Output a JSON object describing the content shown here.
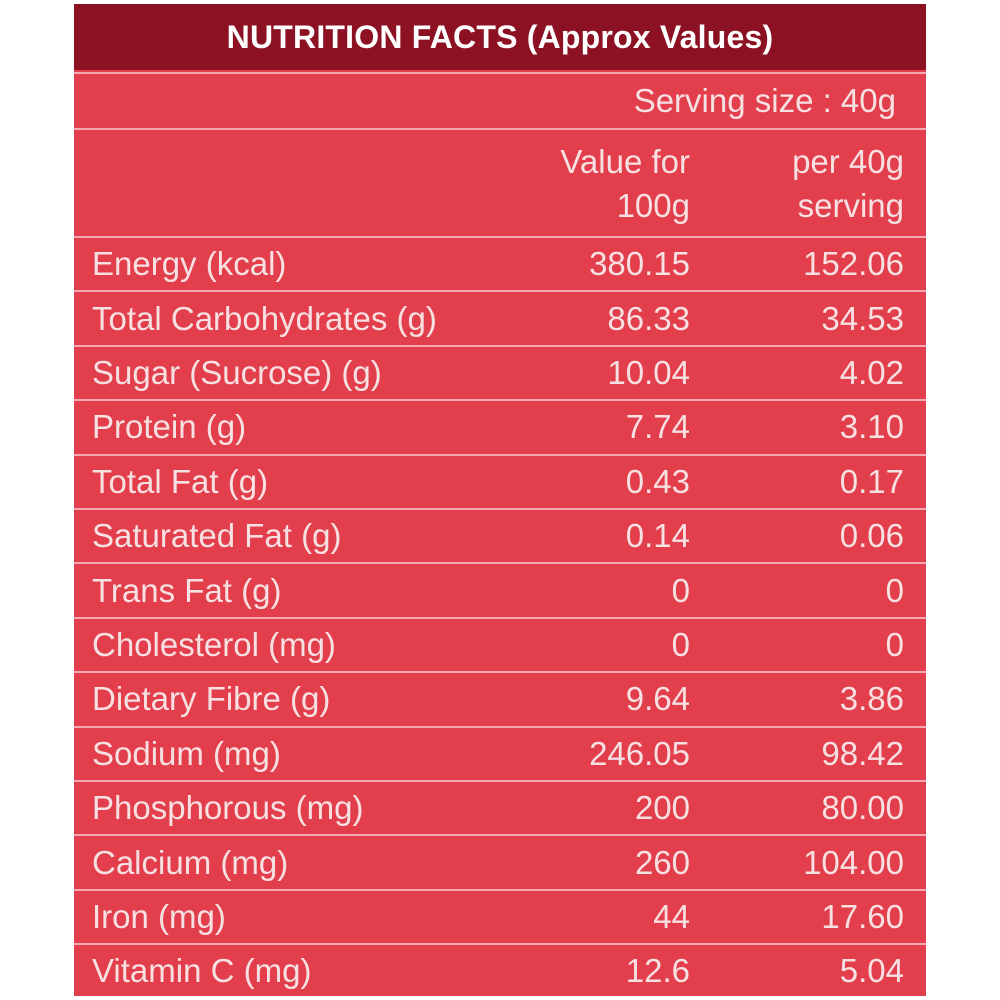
{
  "title": "NUTRITION FACTS (Approx Values)",
  "serving_size": "Serving size : 40g",
  "columns": {
    "per_100g": [
      "Value for",
      "100g"
    ],
    "per_serving": [
      "per 40g",
      "serving"
    ]
  },
  "rows": [
    {
      "label": "Energy (kcal)",
      "per_100g": "380.15",
      "per_serving": "152.06"
    },
    {
      "label": "Total Carbohydrates (g)",
      "per_100g": "86.33",
      "per_serving": "34.53"
    },
    {
      "label": "Sugar (Sucrose) (g)",
      "per_100g": "10.04",
      "per_serving": "4.02"
    },
    {
      "label": "Protein (g)",
      "per_100g": "7.74",
      "per_serving": "3.10"
    },
    {
      "label": "Total Fat (g)",
      "per_100g": "0.43",
      "per_serving": "0.17"
    },
    {
      "label": "Saturated Fat (g)",
      "per_100g": "0.14",
      "per_serving": "0.06"
    },
    {
      "label": "Trans Fat (g)",
      "per_100g": "0",
      "per_serving": "0"
    },
    {
      "label": "Cholesterol (mg)",
      "per_100g": "0",
      "per_serving": "0"
    },
    {
      "label": "Dietary Fibre (g)",
      "per_100g": "9.64",
      "per_serving": "3.86"
    },
    {
      "label": "Sodium (mg)",
      "per_100g": "246.05",
      "per_serving": "98.42"
    },
    {
      "label": "Phosphorous (mg)",
      "per_100g": "200",
      "per_serving": "80.00"
    },
    {
      "label": "Calcium (mg)",
      "per_100g": "260",
      "per_serving": "104.00"
    },
    {
      "label": "Iron (mg)",
      "per_100g": "44",
      "per_serving": "17.60"
    },
    {
      "label": "Vitamin C (mg)",
      "per_100g": "12.6",
      "per_serving": "5.04"
    }
  ],
  "colors": {
    "title_bar": "#8c1223",
    "panel": "#e23e4c",
    "text": "#f7e0e2",
    "divider": "#f2a9b0"
  }
}
